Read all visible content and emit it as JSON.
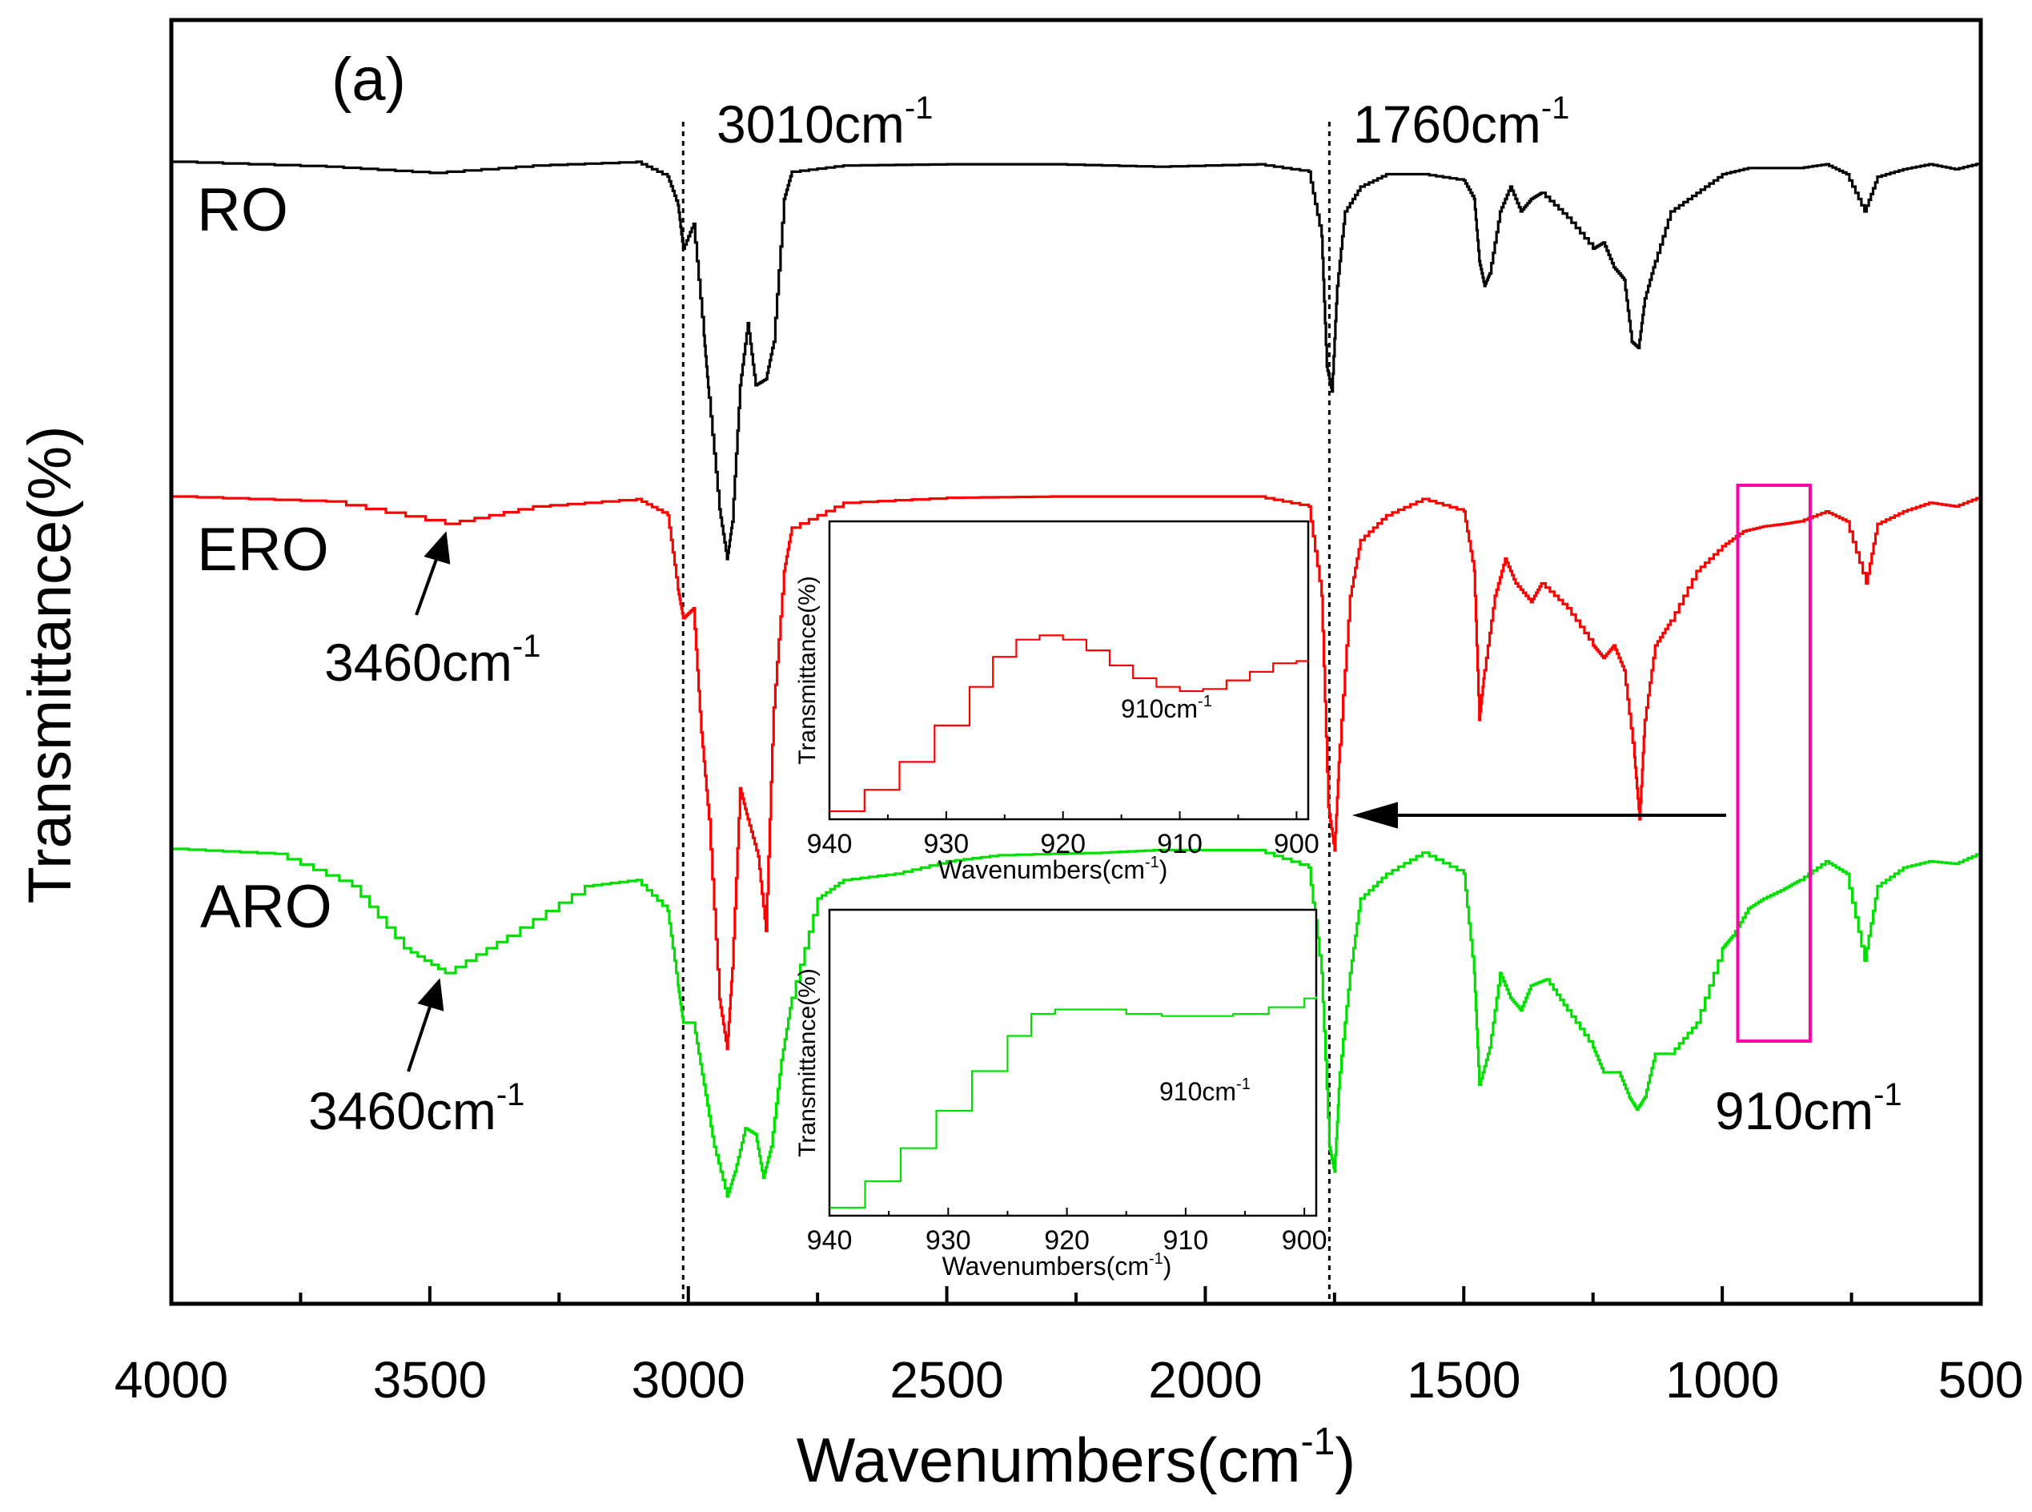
{
  "chart_data": {
    "type": "line",
    "panel_label": "(a)",
    "xlabel": "Wavenumbers(cm",
    "xlabel_sup": "-1",
    "xlabel_close": ")",
    "ylabel": "Transmittance(%)",
    "xlim": [
      4000,
      500
    ],
    "ticks": [
      "4000",
      "3500",
      "3000",
      "2500",
      "2000",
      "1500",
      "1000",
      "500"
    ],
    "tick_values": [
      4000,
      3500,
      3000,
      2500,
      2000,
      1500,
      1000,
      500
    ],
    "minor_tick_values": [
      3750,
      3250,
      2750,
      2250,
      1750,
      1250,
      750
    ],
    "vlines": [
      3010,
      1760
    ],
    "series": [
      {
        "name": "RO",
        "color": "#000000",
        "points": [
          [
            4000,
            0
          ],
          [
            3700,
            -4
          ],
          [
            3500,
            -9
          ],
          [
            3300,
            -3
          ],
          [
            3100,
            0
          ],
          [
            3040,
            -12
          ],
          [
            3020,
            -35
          ],
          [
            3010,
            -70
          ],
          [
            2990,
            -50
          ],
          [
            2970,
            -140
          ],
          [
            2960,
            -190
          ],
          [
            2940,
            -280
          ],
          [
            2925,
            -320
          ],
          [
            2915,
            -290
          ],
          [
            2900,
            -180
          ],
          [
            2885,
            -130
          ],
          [
            2870,
            -180
          ],
          [
            2850,
            -175
          ],
          [
            2835,
            -145
          ],
          [
            2815,
            -30
          ],
          [
            2800,
            -8
          ],
          [
            2700,
            -3
          ],
          [
            2500,
            -2
          ],
          [
            2300,
            -2
          ],
          [
            2100,
            -4
          ],
          [
            1900,
            -2
          ],
          [
            1800,
            -8
          ],
          [
            1775,
            -60
          ],
          [
            1765,
            -165
          ],
          [
            1755,
            -185
          ],
          [
            1745,
            -100
          ],
          [
            1730,
            -40
          ],
          [
            1700,
            -20
          ],
          [
            1650,
            -10
          ],
          [
            1580,
            -10
          ],
          [
            1500,
            -15
          ],
          [
            1480,
            -30
          ],
          [
            1470,
            -80
          ],
          [
            1460,
            -100
          ],
          [
            1450,
            -90
          ],
          [
            1430,
            -40
          ],
          [
            1410,
            -20
          ],
          [
            1390,
            -40
          ],
          [
            1370,
            -30
          ],
          [
            1350,
            -25
          ],
          [
            1300,
            -45
          ],
          [
            1250,
            -70
          ],
          [
            1230,
            -65
          ],
          [
            1210,
            -85
          ],
          [
            1190,
            -95
          ],
          [
            1175,
            -145
          ],
          [
            1162,
            -150
          ],
          [
            1150,
            -110
          ],
          [
            1130,
            -80
          ],
          [
            1100,
            -40
          ],
          [
            1050,
            -25
          ],
          [
            1000,
            -10
          ],
          [
            950,
            -5
          ],
          [
            900,
            -5
          ],
          [
            850,
            -5
          ],
          [
            800,
            -2
          ],
          [
            760,
            -10
          ],
          [
            725,
            -40
          ],
          [
            700,
            -12
          ],
          [
            650,
            -6
          ],
          [
            600,
            -2
          ],
          [
            550,
            -6
          ],
          [
            500,
            -1
          ]
        ]
      },
      {
        "name": "ERO",
        "color": "#ff0000",
        "points": [
          [
            4000,
            0
          ],
          [
            3700,
            -4
          ],
          [
            3470,
            -22
          ],
          [
            3300,
            -8
          ],
          [
            3100,
            -2
          ],
          [
            3040,
            -15
          ],
          [
            3020,
            -75
          ],
          [
            3010,
            -98
          ],
          [
            2990,
            -90
          ],
          [
            2975,
            -190
          ],
          [
            2960,
            -260
          ],
          [
            2940,
            -405
          ],
          [
            2925,
            -445
          ],
          [
            2915,
            -380
          ],
          [
            2900,
            -235
          ],
          [
            2885,
            -260
          ],
          [
            2865,
            -290
          ],
          [
            2850,
            -350
          ],
          [
            2835,
            -170
          ],
          [
            2815,
            -60
          ],
          [
            2800,
            -25
          ],
          [
            2700,
            -5
          ],
          [
            2500,
            -1
          ],
          [
            2300,
            0
          ],
          [
            2100,
            0
          ],
          [
            1900,
            0
          ],
          [
            1800,
            -8
          ],
          [
            1775,
            -80
          ],
          [
            1762,
            -250
          ],
          [
            1750,
            -285
          ],
          [
            1740,
            -200
          ],
          [
            1720,
            -80
          ],
          [
            1700,
            -35
          ],
          [
            1650,
            -15
          ],
          [
            1580,
            -2
          ],
          [
            1500,
            -12
          ],
          [
            1480,
            -60
          ],
          [
            1470,
            -180
          ],
          [
            1460,
            -140
          ],
          [
            1440,
            -80
          ],
          [
            1420,
            -50
          ],
          [
            1400,
            -70
          ],
          [
            1370,
            -85
          ],
          [
            1350,
            -70
          ],
          [
            1300,
            -90
          ],
          [
            1250,
            -120
          ],
          [
            1230,
            -130
          ],
          [
            1210,
            -120
          ],
          [
            1190,
            -140
          ],
          [
            1170,
            -210
          ],
          [
            1160,
            -260
          ],
          [
            1150,
            -180
          ],
          [
            1130,
            -120
          ],
          [
            1100,
            -100
          ],
          [
            1050,
            -60
          ],
          [
            1000,
            -40
          ],
          [
            960,
            -28
          ],
          [
            920,
            -24
          ],
          [
            880,
            -22
          ],
          [
            850,
            -20
          ],
          [
            800,
            -12
          ],
          [
            760,
            -20
          ],
          [
            722,
            -70
          ],
          [
            700,
            -22
          ],
          [
            650,
            -12
          ],
          [
            600,
            -5
          ],
          [
            550,
            -8
          ],
          [
            500,
            0
          ]
        ]
      },
      {
        "name": "ARO",
        "color": "#00e000",
        "points": [
          [
            4000,
            0
          ],
          [
            3800,
            -4
          ],
          [
            3650,
            -30
          ],
          [
            3550,
            -80
          ],
          [
            3470,
            -100
          ],
          [
            3350,
            -70
          ],
          [
            3200,
            -30
          ],
          [
            3100,
            -25
          ],
          [
            3040,
            -50
          ],
          [
            3020,
            -110
          ],
          [
            3010,
            -140
          ],
          [
            2990,
            -140
          ],
          [
            2970,
            -190
          ],
          [
            2950,
            -240
          ],
          [
            2925,
            -280
          ],
          [
            2910,
            -260
          ],
          [
            2890,
            -225
          ],
          [
            2870,
            -230
          ],
          [
            2855,
            -265
          ],
          [
            2840,
            -240
          ],
          [
            2820,
            -170
          ],
          [
            2800,
            -120
          ],
          [
            2750,
            -40
          ],
          [
            2700,
            -25
          ],
          [
            2600,
            -20
          ],
          [
            2500,
            -10
          ],
          [
            2400,
            -5
          ],
          [
            2200,
            -3
          ],
          [
            2100,
            -1
          ],
          [
            1900,
            -1
          ],
          [
            1800,
            -15
          ],
          [
            1775,
            -100
          ],
          [
            1760,
            -240
          ],
          [
            1750,
            -260
          ],
          [
            1740,
            -180
          ],
          [
            1720,
            -100
          ],
          [
            1700,
            -40
          ],
          [
            1650,
            -20
          ],
          [
            1580,
            -3
          ],
          [
            1500,
            -20
          ],
          [
            1480,
            -100
          ],
          [
            1470,
            -190
          ],
          [
            1450,
            -160
          ],
          [
            1430,
            -100
          ],
          [
            1410,
            -120
          ],
          [
            1390,
            -130
          ],
          [
            1370,
            -110
          ],
          [
            1340,
            -105
          ],
          [
            1300,
            -130
          ],
          [
            1250,
            -160
          ],
          [
            1230,
            -180
          ],
          [
            1200,
            -180
          ],
          [
            1180,
            -200
          ],
          [
            1165,
            -210
          ],
          [
            1150,
            -200
          ],
          [
            1130,
            -165
          ],
          [
            1100,
            -165
          ],
          [
            1050,
            -140
          ],
          [
            1000,
            -80
          ],
          [
            980,
            -70
          ],
          [
            950,
            -48
          ],
          [
            920,
            -40
          ],
          [
            880,
            -32
          ],
          [
            850,
            -25
          ],
          [
            800,
            -10
          ],
          [
            760,
            -20
          ],
          [
            725,
            -90
          ],
          [
            700,
            -30
          ],
          [
            650,
            -15
          ],
          [
            600,
            -10
          ],
          [
            550,
            -12
          ],
          [
            500,
            -3
          ]
        ]
      }
    ],
    "labels": {
      "ro": "RO",
      "ero": "ERO",
      "aro": "ARO"
    },
    "annotations": {
      "a3010": {
        "text": "3010cm",
        "sup": "-1"
      },
      "a1760": {
        "text": "1760cm",
        "sup": "-1"
      },
      "a3460_ero": {
        "text": "3460cm",
        "sup": "-1"
      },
      "a3460_aro": {
        "text": "3460cm",
        "sup": "-1"
      },
      "a910": {
        "text": "910cm",
        "sup": "-1"
      }
    },
    "highlight_box": {
      "color": "#ff00aa",
      "x_range": [
        970,
        830
      ]
    },
    "insets": [
      {
        "id": "inset_ero",
        "color": "#ff0000",
        "xlabel": "Wavenumbers(cm",
        "xlabel_sup": "-1",
        "xlabel_close": ")",
        "ylabel": "Transmittance(%)",
        "ticks": [
          "940",
          "930",
          "920",
          "910",
          "900"
        ],
        "tick_values": [
          940,
          930,
          920,
          910,
          900
        ],
        "xlim": [
          940,
          899
        ],
        "ylim": [
          0,
          1
        ],
        "annotation": {
          "text": "910cm",
          "sup": "-1"
        },
        "points": [
          [
            940,
            0.0
          ],
          [
            937,
            0.1
          ],
          [
            934,
            0.23
          ],
          [
            931,
            0.4
          ],
          [
            928,
            0.58
          ],
          [
            926,
            0.72
          ],
          [
            924,
            0.8
          ],
          [
            922,
            0.82
          ],
          [
            920,
            0.8
          ],
          [
            918,
            0.75
          ],
          [
            916,
            0.68
          ],
          [
            914,
            0.62
          ],
          [
            912,
            0.58
          ],
          [
            910,
            0.56
          ],
          [
            908,
            0.57
          ],
          [
            906,
            0.61
          ],
          [
            904,
            0.65
          ],
          [
            902,
            0.69
          ],
          [
            900,
            0.7
          ],
          [
            899,
            0.7
          ]
        ]
      },
      {
        "id": "inset_aro",
        "color": "#00e000",
        "xlabel": "Wavenumbers(cm",
        "xlabel_sup": "-1",
        "xlabel_close": ")",
        "ylabel": "Transmittance(%)",
        "ticks": [
          "940",
          "930",
          "920",
          "910",
          "900"
        ],
        "tick_values": [
          940,
          930,
          920,
          910,
          900
        ],
        "xlim": [
          940,
          899
        ],
        "ylim": [
          0,
          1
        ],
        "annotation": {
          "text": "910cm",
          "sup": "-1"
        },
        "points": [
          [
            940,
            0.0
          ],
          [
            937,
            0.12
          ],
          [
            934,
            0.27
          ],
          [
            931,
            0.44
          ],
          [
            928,
            0.62
          ],
          [
            925,
            0.78
          ],
          [
            923,
            0.88
          ],
          [
            921,
            0.9
          ],
          [
            918,
            0.9
          ],
          [
            915,
            0.88
          ],
          [
            912,
            0.87
          ],
          [
            909,
            0.87
          ],
          [
            906,
            0.88
          ],
          [
            903,
            0.91
          ],
          [
            900,
            0.95
          ],
          [
            899,
            0.96
          ]
        ]
      }
    ]
  }
}
